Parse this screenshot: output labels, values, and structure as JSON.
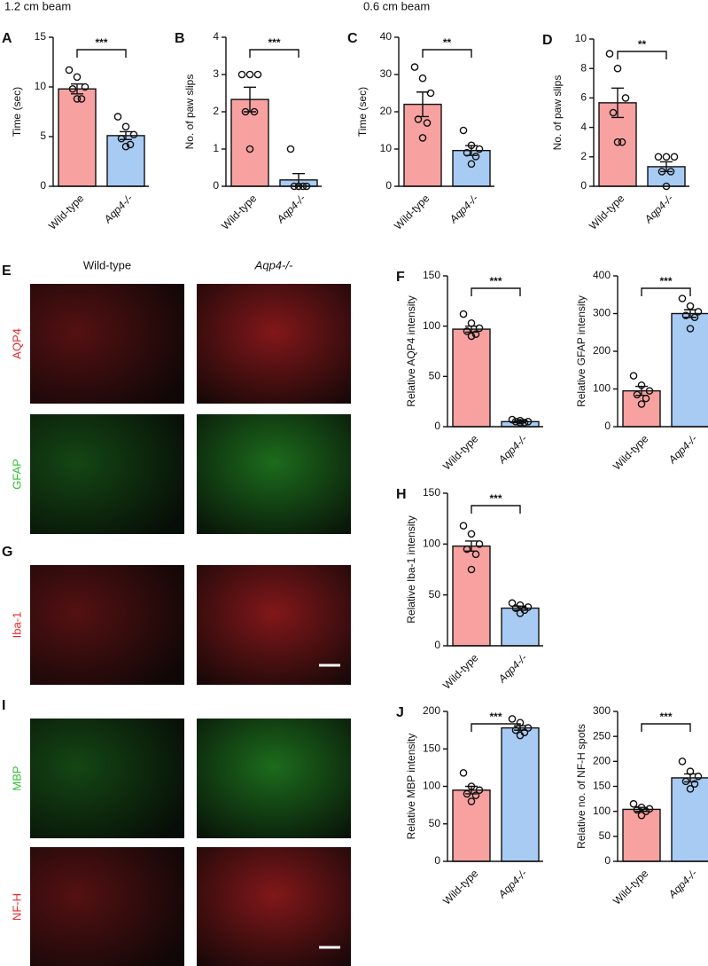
{
  "headers": [
    "1.2 cm beam",
    "0.6 cm beam"
  ],
  "image_panels": [
    {
      "letter": "E",
      "columns": [
        "Wild-type",
        "Aqp4-/-"
      ],
      "rows": [
        {
          "label": "AQP4",
          "color": "#e8262a"
        },
        {
          "label": "GFAP",
          "color": "#2fbf2f"
        }
      ]
    },
    {
      "letter": "G",
      "rows": [
        {
          "label": "Iba-1",
          "color": "#e8262a"
        }
      ]
    },
    {
      "letter": "I",
      "rows": [
        {
          "label": "MBP",
          "color": "#2fbf2f"
        },
        {
          "label": "NF-H",
          "color": "#e8262a"
        }
      ]
    }
  ],
  "chart_data": [
    {
      "type": "bar",
      "panel": "A",
      "ylabel": "Time (sec)",
      "categories": [
        "Wild-type",
        "Aqp4-/-"
      ],
      "values": [
        9.8,
        5.1
      ],
      "errors": [
        0.5,
        0.4
      ],
      "points": [
        [
          11.7,
          11.0,
          10.0,
          9.8,
          8.8,
          8.8
        ],
        [
          7.0,
          6.0,
          5.2,
          4.8,
          4.2,
          4.0
        ]
      ],
      "colors": [
        "#f7a1a1",
        "#a8cbf4"
      ],
      "significance": "***",
      "ylim": [
        0,
        15
      ],
      "yticks": [
        0,
        5,
        10,
        15
      ]
    },
    {
      "type": "bar",
      "panel": "B",
      "ylabel": "No. of paw slips",
      "categories": [
        "Wild-type",
        "Aqp4-/-"
      ],
      "values": [
        2.33,
        0.17
      ],
      "errors": [
        0.33,
        0.17
      ],
      "points": [
        [
          3,
          3,
          3,
          2,
          2,
          1
        ],
        [
          1,
          0,
          0,
          0,
          0,
          0
        ]
      ],
      "colors": [
        "#f7a1a1",
        "#a8cbf4"
      ],
      "significance": "***",
      "ylim": [
        0,
        4
      ],
      "yticks": [
        0,
        1,
        2,
        3,
        4
      ]
    },
    {
      "type": "bar",
      "panel": "C",
      "ylabel": "Time (sec)",
      "categories": [
        "Wild-type",
        "Aqp4-/-"
      ],
      "values": [
        22,
        9.6
      ],
      "errors": [
        3.3,
        1.3
      ],
      "points": [
        [
          32,
          29,
          25,
          18,
          17,
          13
        ],
        [
          15,
          11,
          10,
          9,
          8,
          6
        ]
      ],
      "colors": [
        "#f7a1a1",
        "#a8cbf4"
      ],
      "significance": "**",
      "ylim": [
        0,
        40
      ],
      "yticks": [
        0,
        10,
        20,
        30,
        40
      ]
    },
    {
      "type": "bar",
      "panel": "D",
      "ylabel": "No. of paw slips",
      "categories": [
        "Wild-type",
        "Aqp4-/-"
      ],
      "values": [
        5.67,
        1.33
      ],
      "errors": [
        1.0,
        0.33
      ],
      "points": [
        [
          9,
          8,
          6,
          5,
          3,
          3
        ],
        [
          2,
          2,
          2,
          1,
          1,
          0
        ]
      ],
      "colors": [
        "#f7a1a1",
        "#a8cbf4"
      ],
      "significance": "**",
      "ylim": [
        0,
        10
      ],
      "yticks": [
        0,
        2,
        4,
        6,
        8,
        10
      ]
    },
    {
      "type": "bar",
      "panel": "F",
      "ylabel": "Relative AQP4 intensity",
      "categories": [
        "Wild-type",
        "Aqp4-/-"
      ],
      "values": [
        97,
        5
      ],
      "errors": [
        3,
        1
      ],
      "points": [
        [
          112,
          103,
          98,
          95,
          92,
          90
        ],
        [
          7,
          6,
          5,
          5,
          4,
          4
        ]
      ],
      "colors": [
        "#f7a1a1",
        "#a8cbf4"
      ],
      "significance": "***",
      "ylim": [
        0,
        150
      ],
      "yticks": [
        0,
        50,
        100,
        150
      ]
    },
    {
      "type": "bar",
      "ylabel": "Relative GFAP intensity",
      "categories": [
        "Wild-type",
        "Aqp4-/-"
      ],
      "values": [
        95,
        300
      ],
      "errors": [
        12,
        10
      ],
      "points": [
        [
          135,
          110,
          95,
          85,
          75,
          60
        ],
        [
          340,
          320,
          305,
          295,
          290,
          260
        ]
      ],
      "colors": [
        "#f7a1a1",
        "#a8cbf4"
      ],
      "significance": "***",
      "ylim": [
        0,
        400
      ],
      "yticks": [
        0,
        100,
        200,
        300,
        400
      ]
    },
    {
      "type": "bar",
      "panel": "H",
      "ylabel": "Relative Iba-1 intensity",
      "categories": [
        "Wild-type",
        "Aqp4-/-"
      ],
      "values": [
        98,
        37
      ],
      "errors": [
        5,
        2
      ],
      "points": [
        [
          118,
          110,
          100,
          95,
          90,
          75
        ],
        [
          42,
          40,
          38,
          37,
          35,
          32
        ]
      ],
      "colors": [
        "#f7a1a1",
        "#a8cbf4"
      ],
      "significance": "***",
      "ylim": [
        0,
        150
      ],
      "yticks": [
        0,
        50,
        100,
        150
      ]
    },
    {
      "type": "bar",
      "panel": "J",
      "ylabel": "Relative MBP intensity",
      "categories": [
        "Wild-type",
        "Aqp4-/-"
      ],
      "values": [
        95,
        178
      ],
      "errors": [
        5,
        3
      ],
      "points": [
        [
          118,
          100,
          95,
          90,
          88,
          80
        ],
        [
          190,
          185,
          178,
          175,
          172,
          168
        ]
      ],
      "colors": [
        "#f7a1a1",
        "#a8cbf4"
      ],
      "significance": "***",
      "ylim": [
        0,
        200
      ],
      "yticks": [
        0,
        50,
        100,
        150,
        200
      ]
    },
    {
      "type": "bar",
      "ylabel": "Relative no. of NF-H spots",
      "categories": [
        "Wild-type",
        "Aqp4-/-"
      ],
      "values": [
        104,
        167
      ],
      "errors": [
        4,
        8
      ],
      "points": [
        [
          115,
          108,
          105,
          103,
          100,
          92
        ],
        [
          200,
          180,
          170,
          160,
          155,
          145
        ]
      ],
      "colors": [
        "#f7a1a1",
        "#a8cbf4"
      ],
      "significance": "***",
      "ylim": [
        0,
        300
      ],
      "yticks": [
        0,
        50,
        100,
        150,
        200,
        250,
        300
      ]
    }
  ]
}
